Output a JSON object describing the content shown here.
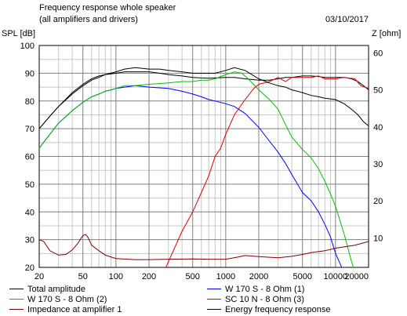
{
  "header": {
    "title": "Frequency response whole speaker",
    "subtitle": "(all amplifiers and drivers)",
    "date": "03/10/2017"
  },
  "chart_data": {
    "type": "line",
    "title": "Frequency response whole speaker",
    "subtitle": "(all amplifiers and drivers)",
    "xlabel": "",
    "ylabel": "SPL [dB]",
    "y2label": "Z [ohm]",
    "x_scale": "log",
    "xlim": [
      20,
      20000
    ],
    "ylim": [
      20,
      100
    ],
    "y2lim": [
      2,
      62
    ],
    "grid": true,
    "x_ticks": [
      "20",
      "50",
      "100",
      "200",
      "500",
      "1000",
      "2000",
      "5000",
      "10000",
      "20000"
    ],
    "y_ticks": [
      "20",
      "30",
      "40",
      "50",
      "60",
      "70",
      "80",
      "90",
      "100"
    ],
    "y2_ticks": [
      "10",
      "20",
      "30",
      "40",
      "50",
      "60"
    ],
    "legend_position": "bottom",
    "series": [
      {
        "name": "Total amplitude",
        "color": "#000000",
        "axis": "left",
        "x": [
          20,
          25,
          30,
          40,
          50,
          60,
          70,
          80,
          100,
          120,
          150,
          200,
          250,
          300,
          400,
          500,
          600,
          700,
          800,
          1000,
          1200,
          1500,
          2000,
          2500,
          3000,
          3500,
          4000,
          5000,
          6000,
          7000,
          8000,
          10000,
          12000,
          14000,
          16000,
          18000,
          20000
        ],
        "y": [
          70,
          74.5,
          78,
          83,
          86,
          88,
          89,
          89.5,
          90,
          90.5,
          90.5,
          90.5,
          90,
          89.5,
          89,
          88.5,
          88.3,
          88.2,
          88.3,
          88.5,
          88.5,
          88,
          87.5,
          87.5,
          88,
          88.5,
          88.5,
          89,
          89,
          88.8,
          88.5,
          88.5,
          88.5,
          88,
          87,
          85.5,
          84
        ]
      },
      {
        "name": "W 170 S - 8 Ohm (1)",
        "color": "#0000ff",
        "axis": "left",
        "x": [
          20,
          25,
          30,
          40,
          50,
          60,
          70,
          80,
          90,
          100,
          120,
          150,
          200,
          300,
          400,
          500,
          600,
          700,
          800,
          1000,
          1200,
          1500,
          2000,
          2500,
          3000,
          3500,
          4000,
          5000,
          6000,
          7000,
          8000,
          9000,
          10000,
          12000,
          14000
        ],
        "y": [
          63,
          68,
          72,
          76.5,
          79.5,
          81.5,
          82.5,
          83.5,
          84,
          84.5,
          85,
          85.5,
          85,
          84.5,
          83.5,
          82.5,
          81.5,
          80.5,
          80,
          79,
          78,
          75.5,
          70.5,
          65.5,
          61.5,
          57.5,
          53.5,
          47,
          44,
          40,
          35.5,
          31,
          25,
          18,
          14
        ]
      },
      {
        "name": "W 170 S - 8 Ohm (2)",
        "color": "#00c000",
        "axis": "left",
        "x": [
          20,
          25,
          30,
          40,
          50,
          60,
          70,
          80,
          90,
          100,
          120,
          150,
          200,
          300,
          400,
          500,
          600,
          700,
          800,
          1000,
          1200,
          1400,
          1600,
          2000,
          2500,
          3000,
          3500,
          4000,
          5000,
          6000,
          7000,
          8000,
          9000,
          10000,
          12000,
          14000,
          16000
        ],
        "y": [
          63,
          68,
          72,
          76.5,
          79.5,
          81.5,
          82.5,
          83.5,
          84,
          84.5,
          85.5,
          85.5,
          86,
          86.5,
          87,
          87,
          87.5,
          87.5,
          88,
          89.5,
          90.5,
          90,
          88,
          84,
          80.5,
          77,
          71.5,
          67,
          62.5,
          59.5,
          55.5,
          51,
          46.5,
          42,
          32,
          22,
          15
        ]
      },
      {
        "name": "SC 10 N - 8 Ohm (3)",
        "color": "#e00000",
        "axis": "left",
        "x": [
          200,
          250,
          300,
          400,
          500,
          600,
          700,
          800,
          900,
          1000,
          1200,
          1500,
          1800,
          2000,
          2500,
          3000,
          3500,
          4000,
          5000,
          6000,
          7000,
          8000,
          10000,
          12000,
          15000,
          17000,
          20000
        ],
        "y": [
          5,
          15,
          22,
          33,
          40,
          47,
          53,
          60,
          63,
          68,
          75,
          80.5,
          84.5,
          86,
          87,
          88.5,
          87,
          88.5,
          88.5,
          88.5,
          89,
          88,
          88,
          88.5,
          88,
          85.5,
          84.5
        ]
      },
      {
        "name": "Impedance at amplifier 1",
        "color": "#800000",
        "axis": "right",
        "x": [
          20,
          22,
          25,
          30,
          35,
          40,
          45,
          50,
          53,
          56,
          60,
          70,
          80,
          100,
          150,
          200,
          300,
          500,
          700,
          1000,
          1300,
          1500,
          2000,
          3000,
          4000,
          5000,
          6000,
          8000,
          10000,
          15000,
          20000
        ],
        "y": [
          9.5,
          9,
          6.5,
          5.3,
          5.5,
          6.7,
          8.5,
          10.6,
          10.9,
          10,
          8,
          6.5,
          5.3,
          4.4,
          4.1,
          4.1,
          4.2,
          4.3,
          4.2,
          4.2,
          4.8,
          5.2,
          4.9,
          4.6,
          5,
          5.5,
          6,
          6.5,
          7.2,
          8,
          9
        ]
      },
      {
        "name": "Energy frequency response",
        "color": "#000000",
        "axis": "left",
        "x": [
          20,
          25,
          30,
          40,
          50,
          60,
          70,
          80,
          100,
          120,
          150,
          200,
          250,
          300,
          400,
          500,
          600,
          800,
          1000,
          1200,
          1500,
          2000,
          2500,
          3000,
          3500,
          4000,
          5000,
          6000,
          7000,
          8000,
          10000,
          12000,
          14000,
          16000,
          18000,
          20000
        ],
        "y": [
          70,
          74.5,
          78,
          82.5,
          85.5,
          87.5,
          88.5,
          89.5,
          90.5,
          91.5,
          92,
          91.5,
          91.5,
          91,
          90.5,
          90,
          90,
          90,
          91,
          92,
          91,
          88,
          86.5,
          85.5,
          85,
          84,
          83,
          82,
          81.5,
          81,
          80.5,
          79,
          77,
          75,
          72.5,
          71
        ]
      }
    ]
  },
  "legend": {
    "items": [
      {
        "name": "Total amplitude",
        "color": "#000000"
      },
      {
        "name": "W 170 S - 8 Ohm (1)",
        "color": "#0000ff"
      },
      {
        "name": "W 170 S - 8 Ohm (2)",
        "color": "#00c000"
      },
      {
        "name": "SC 10 N - 8 Ohm (3)",
        "color": "#e00000"
      },
      {
        "name": "Impedance at amplifier 1",
        "color": "#800000"
      },
      {
        "name": "Energy frequency response",
        "color": "#000000"
      }
    ]
  }
}
